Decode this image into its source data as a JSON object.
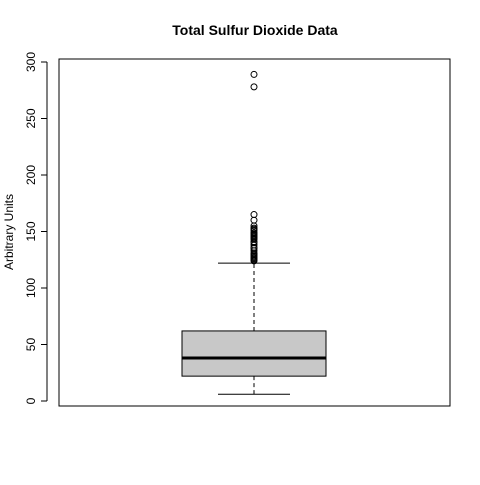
{
  "chart_data": {
    "type": "boxplot",
    "title": "Total Sulfur Dioxide Data",
    "xlabel": "",
    "ylabel": "Arbitrary Units",
    "ylim": [
      0,
      300
    ],
    "yticks": [
      0,
      50,
      100,
      150,
      200,
      250,
      300
    ],
    "grid": false,
    "legend": "none",
    "box_fill": "#c8c8c8",
    "stats": {
      "whisker_low": 6,
      "q1": 22,
      "median": 38,
      "q3": 62,
      "whisker_high": 122
    },
    "outliers": [
      124,
      125,
      126,
      127,
      128,
      129,
      130,
      131,
      133,
      135,
      136,
      138,
      140,
      141,
      143,
      144,
      145,
      146,
      147,
      148,
      149,
      151,
      152,
      153,
      155,
      160,
      165,
      278,
      289
    ]
  }
}
